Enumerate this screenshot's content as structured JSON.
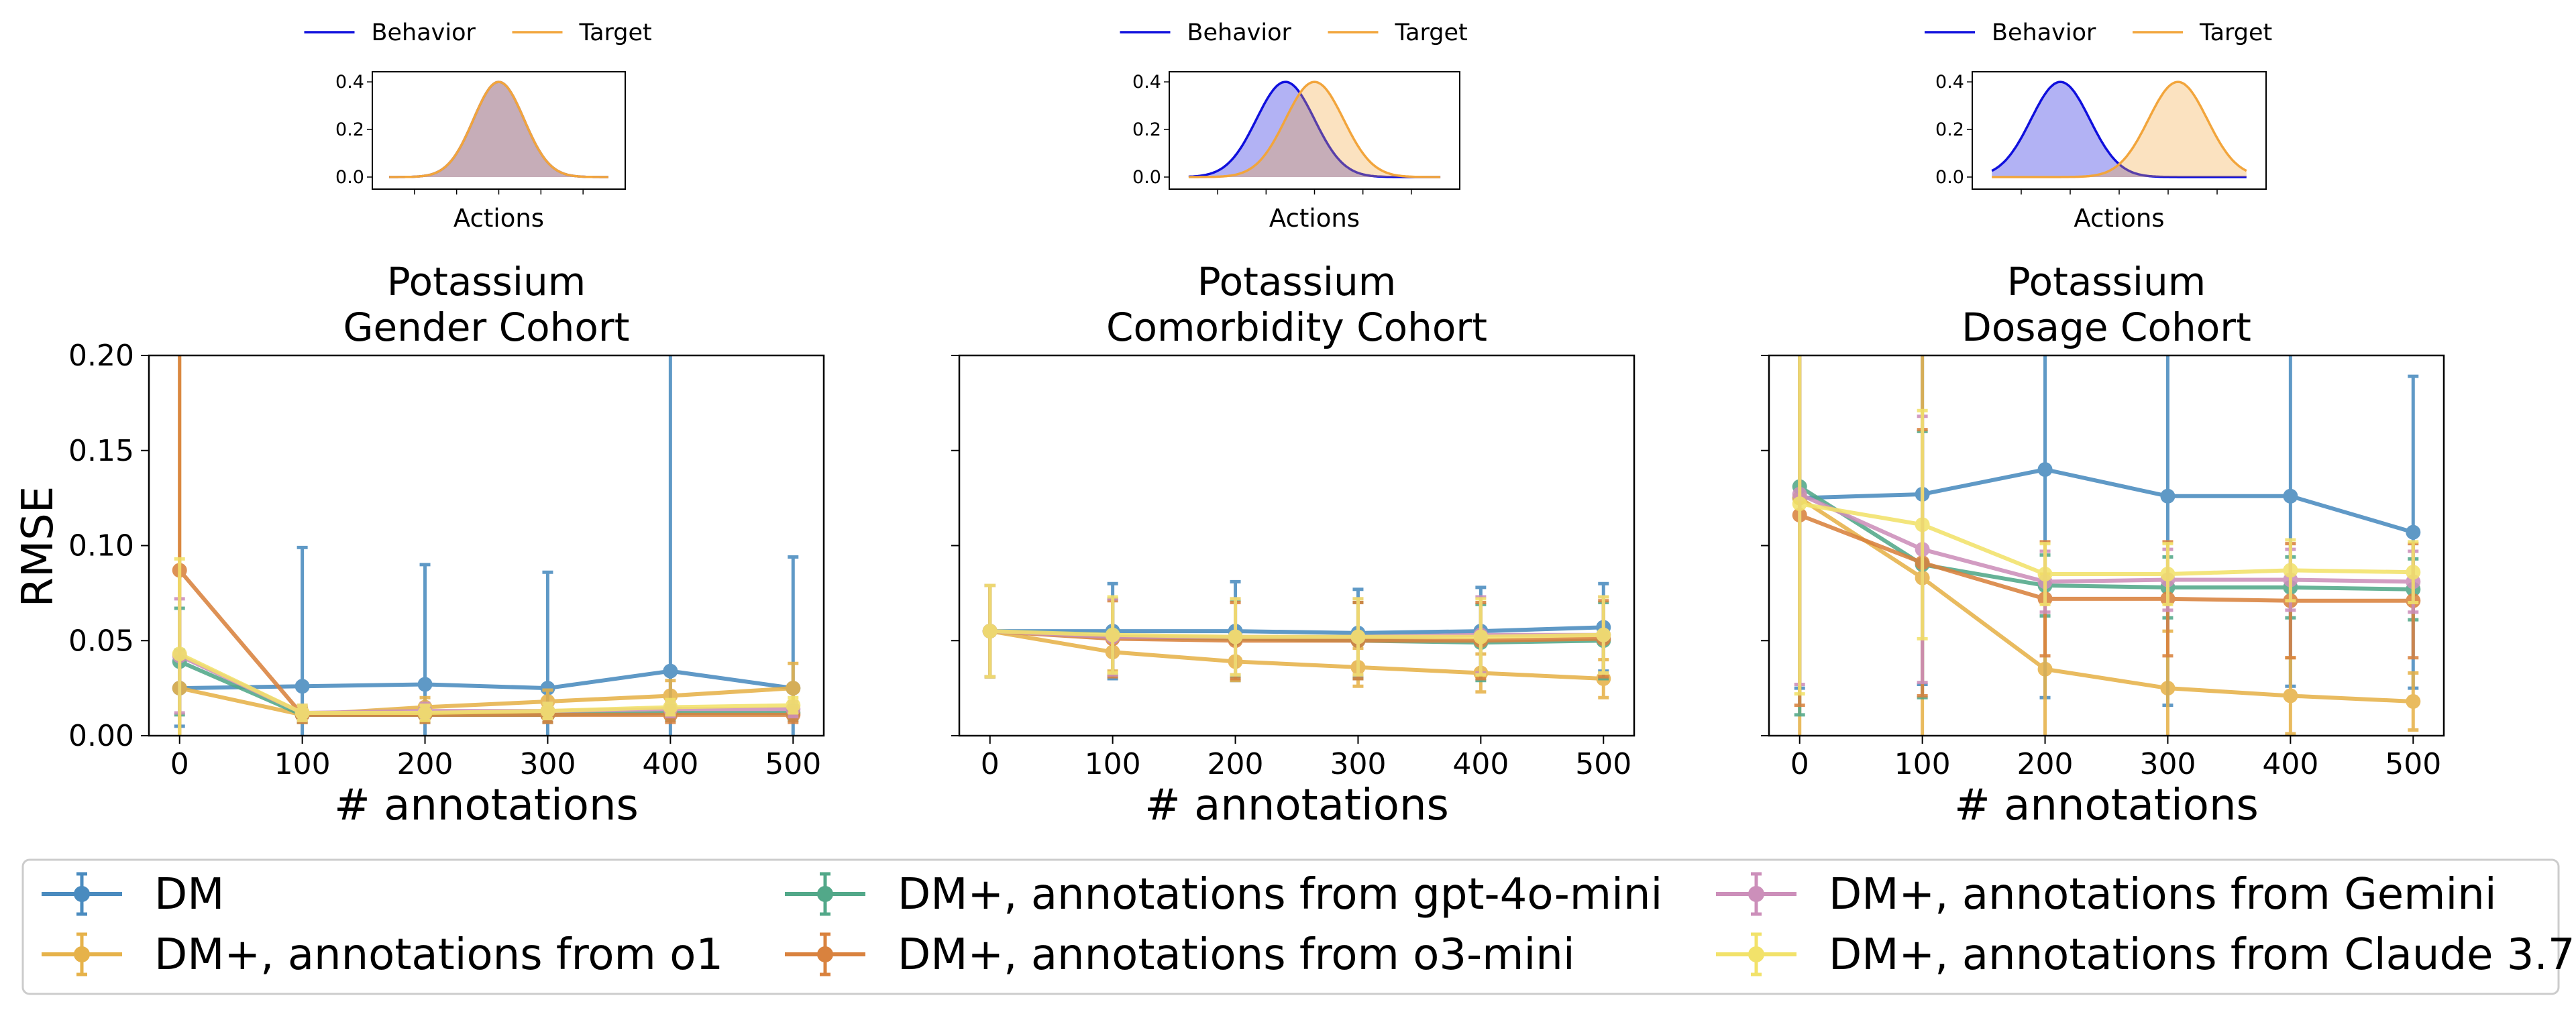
{
  "chart_data": {
    "type": "line",
    "x": [
      0,
      100,
      200,
      300,
      400,
      500
    ],
    "xticks": [
      "0",
      "100",
      "200",
      "300",
      "400",
      "500"
    ],
    "ylim": [
      0,
      0.2
    ],
    "yticks": [
      "0.00",
      "0.05",
      "0.10",
      "0.15",
      "0.20"
    ],
    "xlabel": "# annotations",
    "ylabel": "RMSE",
    "series_meta": [
      {
        "name": "DM",
        "color": "#4a8bbf"
      },
      {
        "name": "DM+, annotations from o1",
        "color": "#e6b24a"
      },
      {
        "name": "DM+, annotations from gpt-4o-mini",
        "color": "#52a889"
      },
      {
        "name": "DM+, annotations from o3-mini",
        "color": "#d9823e"
      },
      {
        "name": "DM+, annotations from Gemini",
        "color": "#cc8fba"
      },
      {
        "name": "DM+, annotations from Claude 3.7",
        "color": "#f2e26a"
      }
    ],
    "panels": [
      {
        "title_line1": "Potassium",
        "title_line2": "Gender Cohort",
        "series": [
          {
            "name": "DM",
            "values": [
              0.025,
              0.026,
              0.027,
              0.025,
              0.034,
              0.025
            ],
            "err": [
              0.02,
              0.073,
              0.063,
              0.061,
              0.2,
              0.069
            ]
          },
          {
            "name": "DM+, annotations from o1",
            "values": [
              0.025,
              0.011,
              0.015,
              0.018,
              0.021,
              0.025
            ],
            "err": [
              0.3,
              0.004,
              0.005,
              0.006,
              0.008,
              0.013
            ]
          },
          {
            "name": "DM+, annotations from gpt-4o-mini",
            "values": [
              0.039,
              0.011,
              0.011,
              0.011,
              0.012,
              0.012
            ],
            "err": [
              0.028,
              0.004,
              0.004,
              0.004,
              0.004,
              0.004
            ]
          },
          {
            "name": "DM+, annotations from o3-mini",
            "values": [
              0.087,
              0.011,
              0.011,
              0.011,
              0.011,
              0.011
            ],
            "err": [
              0.12,
              0.004,
              0.004,
              0.004,
              0.004,
              0.004
            ]
          },
          {
            "name": "DM+, annotations from Gemini",
            "values": [
              0.042,
              0.012,
              0.013,
              0.013,
              0.014,
              0.014
            ],
            "err": [
              0.03,
              0.004,
              0.004,
              0.004,
              0.004,
              0.004
            ]
          },
          {
            "name": "DM+, annotations from Claude 3.7",
            "values": [
              0.043,
              0.012,
              0.012,
              0.013,
              0.015,
              0.016
            ],
            "err": [
              0.05,
              0.004,
              0.004,
              0.004,
              0.004,
              0.004
            ]
          }
        ],
        "inset": {
          "behavior_mean": 0.0,
          "target_mean": 0.0,
          "legend_behavior": "Behavior",
          "legend_target": "Target",
          "xlabel": "Actions",
          "yticks": [
            "0.0",
            "0.2",
            "0.4"
          ]
        }
      },
      {
        "title_line1": "Potassium",
        "title_line2": "Comorbidity Cohort",
        "series": [
          {
            "name": "DM",
            "values": [
              0.055,
              0.055,
              0.055,
              0.054,
              0.055,
              0.057
            ],
            "err": [
              0.024,
              0.025,
              0.026,
              0.023,
              0.023,
              0.023
            ]
          },
          {
            "name": "DM+, annotations from o1",
            "values": [
              0.055,
              0.044,
              0.039,
              0.036,
              0.033,
              0.03
            ],
            "err": [
              0.024,
              0.01,
              0.01,
              0.01,
              0.01,
              0.01
            ]
          },
          {
            "name": "DM+, annotations from gpt-4o-mini",
            "values": [
              0.055,
              0.052,
              0.051,
              0.05,
              0.049,
              0.05
            ],
            "err": [
              0.024,
              0.02,
              0.02,
              0.02,
              0.02,
              0.02
            ]
          },
          {
            "name": "DM+, annotations from o3-mini",
            "values": [
              0.055,
              0.051,
              0.05,
              0.05,
              0.05,
              0.051
            ],
            "err": [
              0.024,
              0.02,
              0.02,
              0.02,
              0.02,
              0.02
            ]
          },
          {
            "name": "DM+, annotations from Gemini",
            "values": [
              0.055,
              0.052,
              0.052,
              0.052,
              0.053,
              0.053
            ],
            "err": [
              0.024,
              0.02,
              0.02,
              0.02,
              0.02,
              0.02
            ]
          },
          {
            "name": "DM+, annotations from Claude 3.7",
            "values": [
              0.055,
              0.053,
              0.052,
              0.052,
              0.052,
              0.053
            ],
            "err": [
              0.024,
              0.02,
              0.02,
              0.02,
              0.02,
              0.02
            ]
          }
        ],
        "inset": {
          "behavior_mean": -0.6,
          "target_mean": 0.0,
          "legend_behavior": "Behavior",
          "legend_target": "Target",
          "xlabel": "Actions",
          "yticks": [
            "0.0",
            "0.2",
            "0.4"
          ]
        }
      },
      {
        "title_line1": "Potassium",
        "title_line2": "Dosage Cohort",
        "series": [
          {
            "name": "DM",
            "values": [
              0.125,
              0.127,
              0.14,
              0.126,
              0.126,
              0.107
            ],
            "err": [
              0.1,
              0.1,
              0.12,
              0.11,
              0.1,
              0.082
            ]
          },
          {
            "name": "DM+, annotations from o1",
            "values": [
              0.125,
              0.083,
              0.035,
              0.025,
              0.021,
              0.018
            ],
            "err": [
              0.3,
              0.3,
              0.05,
              0.03,
              0.02,
              0.015
            ]
          },
          {
            "name": "DM+, annotations from gpt-4o-mini",
            "values": [
              0.131,
              0.09,
              0.079,
              0.078,
              0.078,
              0.077
            ],
            "err": [
              0.12,
              0.07,
              0.016,
              0.016,
              0.016,
              0.016
            ]
          },
          {
            "name": "DM+, annotations from o3-mini",
            "values": [
              0.116,
              0.091,
              0.072,
              0.072,
              0.071,
              0.071
            ],
            "err": [
              0.1,
              0.07,
              0.03,
              0.03,
              0.03,
              0.03
            ]
          },
          {
            "name": "DM+, annotations from Gemini",
            "values": [
              0.127,
              0.098,
              0.081,
              0.082,
              0.082,
              0.081
            ],
            "err": [
              0.1,
              0.07,
              0.016,
              0.016,
              0.016,
              0.016
            ]
          },
          {
            "name": "DM+, annotations from Claude 3.7",
            "values": [
              0.122,
              0.111,
              0.085,
              0.085,
              0.087,
              0.086
            ],
            "err": [
              0.1,
              0.06,
              0.016,
              0.016,
              0.016,
              0.016
            ]
          }
        ],
        "inset": {
          "behavior_mean": -1.2,
          "target_mean": 1.2,
          "legend_behavior": "Behavior",
          "legend_target": "Target",
          "xlabel": "Actions",
          "yticks": [
            "0.0",
            "0.2",
            "0.4"
          ]
        }
      }
    ],
    "legend": [
      "DM",
      "DM+, annotations from o1",
      "DM+, annotations from gpt-4o-mini",
      "DM+, annotations from o3-mini",
      "DM+, annotations from Gemini",
      "DM+, annotations from Claude 3.7"
    ],
    "inset_colors": {
      "behavior": "#1010dd",
      "target": "#f2a53c"
    }
  }
}
